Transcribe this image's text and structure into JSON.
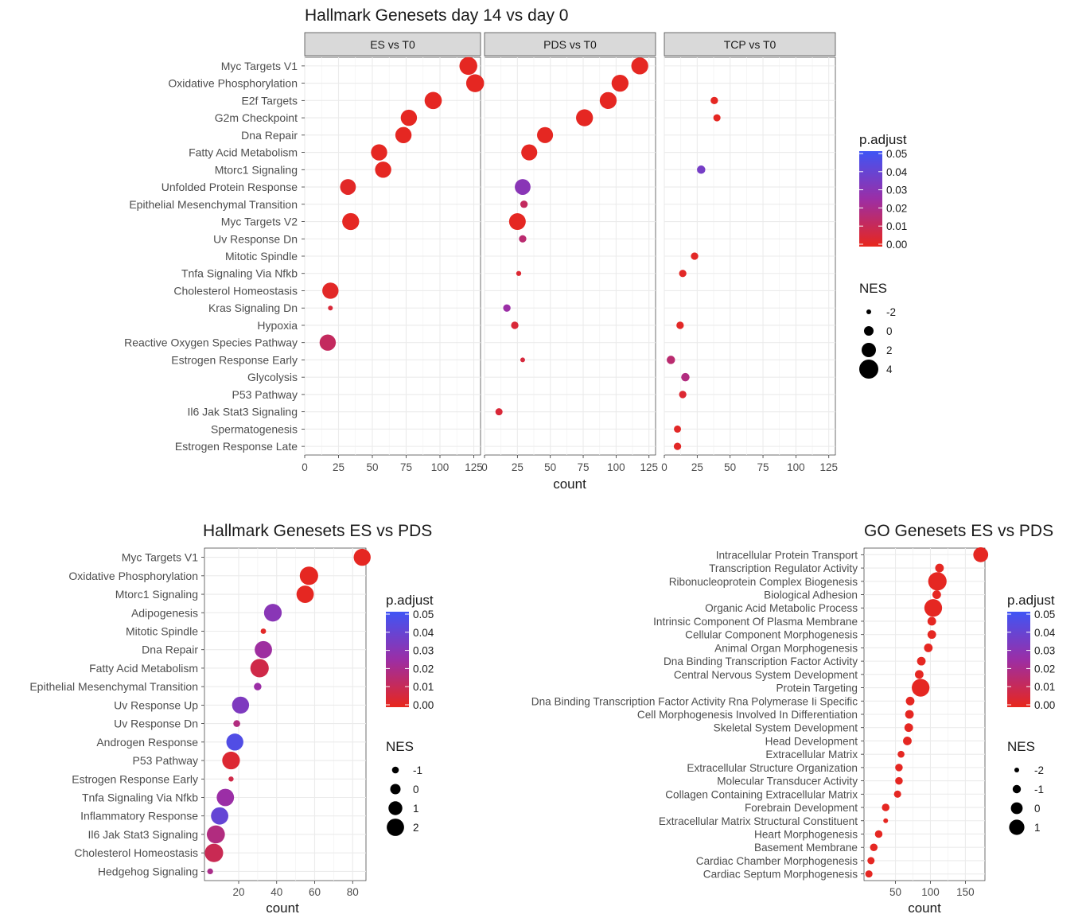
{
  "colors": {
    "low": "#e8271c",
    "mid": "#9b2ea6",
    "high": "#3f55f5",
    "panel_bg": "#ffffff",
    "grid": "#ebebeb",
    "strip_bg": "#d9d9d9"
  },
  "legend": {
    "padj_title": "p.adjust",
    "nes_title": "NES",
    "padj_labels": [
      "0.05",
      "0.04",
      "0.03",
      "0.02",
      "0.01",
      "0.00"
    ],
    "nes_labels_top": [
      "-2",
      "0",
      "2",
      "4"
    ],
    "nes_labels_bl": [
      "-1",
      "0",
      "1",
      "2"
    ],
    "nes_labels_br": [
      "-2",
      "-1",
      "0",
      "1"
    ]
  },
  "chart_data": [
    {
      "type": "scatter",
      "title": "Hallmark Genesets day 14 vs day 0",
      "xlabel": "count",
      "xlim": [
        0,
        130
      ],
      "xticks": [
        0,
        25,
        50,
        75,
        100,
        125
      ],
      "facets": [
        "ES vs T0",
        "PDS vs T0",
        "TCP vs T0"
      ],
      "categories": [
        "Myc Targets V1",
        "Oxidative Phosphorylation",
        "E2f Targets",
        "G2m Checkpoint",
        "Dna Repair",
        "Fatty Acid Metabolism",
        "Mtorc1 Signaling",
        "Unfolded Protein Response",
        "Epithelial Mesenchymal Transition",
        "Myc Targets V2",
        "Uv Response Dn",
        "Mitotic Spindle",
        "Tnfa Signaling Via Nfkb",
        "Cholesterol Homeostasis",
        "Kras Signaling Dn",
        "Hypoxia",
        "Reactive Oxygen Species Pathway",
        "Estrogen Response Early",
        "Glycolysis",
        "P53 Pathway",
        "Il6 Jak Stat3 Signaling",
        "Spermatogenesis",
        "Estrogen Response Late"
      ],
      "points": [
        {
          "facet": 0,
          "cat": 0,
          "x": 121,
          "padj": 0.001,
          "nes": 3.5
        },
        {
          "facet": 0,
          "cat": 1,
          "x": 126,
          "padj": 0.001,
          "nes": 3.5
        },
        {
          "facet": 0,
          "cat": 2,
          "x": 95,
          "padj": 0.001,
          "nes": 3.2
        },
        {
          "facet": 0,
          "cat": 3,
          "x": 77,
          "padj": 0.001,
          "nes": 2.8
        },
        {
          "facet": 0,
          "cat": 4,
          "x": 73,
          "padj": 0.001,
          "nes": 2.8
        },
        {
          "facet": 0,
          "cat": 5,
          "x": 55,
          "padj": 0.001,
          "nes": 2.8
        },
        {
          "facet": 0,
          "cat": 6,
          "x": 58,
          "padj": 0.001,
          "nes": 2.8
        },
        {
          "facet": 0,
          "cat": 7,
          "x": 32,
          "padj": 0.002,
          "nes": 2.6
        },
        {
          "facet": 0,
          "cat": 9,
          "x": 34,
          "padj": 0.001,
          "nes": 3.1
        },
        {
          "facet": 0,
          "cat": 13,
          "x": 19,
          "padj": 0.002,
          "nes": 2.8
        },
        {
          "facet": 0,
          "cat": 14,
          "x": 19,
          "padj": 0.005,
          "nes": -2.0
        },
        {
          "facet": 0,
          "cat": 16,
          "x": 17,
          "padj": 0.012,
          "nes": 2.8
        },
        {
          "facet": 1,
          "cat": 0,
          "x": 118,
          "padj": 0.001,
          "nes": 3.1
        },
        {
          "facet": 1,
          "cat": 1,
          "x": 103,
          "padj": 0.001,
          "nes": 3.1
        },
        {
          "facet": 1,
          "cat": 2,
          "x": 94,
          "padj": 0.001,
          "nes": 3.1
        },
        {
          "facet": 1,
          "cat": 3,
          "x": 76,
          "padj": 0.001,
          "nes": 3.1
        },
        {
          "facet": 1,
          "cat": 4,
          "x": 46,
          "padj": 0.001,
          "nes": 2.7
        },
        {
          "facet": 1,
          "cat": 5,
          "x": 34,
          "padj": 0.001,
          "nes": 2.7
        },
        {
          "facet": 1,
          "cat": 7,
          "x": 29,
          "padj": 0.03,
          "nes": 2.6
        },
        {
          "facet": 1,
          "cat": 8,
          "x": 30,
          "padj": 0.012,
          "nes": -0.9
        },
        {
          "facet": 1,
          "cat": 9,
          "x": 25,
          "padj": 0.001,
          "nes": 3.0
        },
        {
          "facet": 1,
          "cat": 10,
          "x": 29,
          "padj": 0.015,
          "nes": -0.9
        },
        {
          "facet": 1,
          "cat": 12,
          "x": 26,
          "padj": 0.004,
          "nes": -1.9
        },
        {
          "facet": 1,
          "cat": 14,
          "x": 17,
          "padj": 0.025,
          "nes": -0.9
        },
        {
          "facet": 1,
          "cat": 15,
          "x": 23,
          "padj": 0.005,
          "nes": -0.9
        },
        {
          "facet": 1,
          "cat": 17,
          "x": 29,
          "padj": 0.006,
          "nes": -2.0
        },
        {
          "facet": 1,
          "cat": 20,
          "x": 11,
          "padj": 0.005,
          "nes": -1.0
        },
        {
          "facet": 2,
          "cat": 2,
          "x": 38,
          "padj": 0.001,
          "nes": -0.9
        },
        {
          "facet": 2,
          "cat": 3,
          "x": 40,
          "padj": 0.001,
          "nes": -1.0
        },
        {
          "facet": 2,
          "cat": 6,
          "x": 28,
          "padj": 0.035,
          "nes": -0.5
        },
        {
          "facet": 2,
          "cat": 11,
          "x": 23,
          "padj": 0.002,
          "nes": -0.9
        },
        {
          "facet": 2,
          "cat": 12,
          "x": 14,
          "padj": 0.002,
          "nes": -0.9
        },
        {
          "facet": 2,
          "cat": 15,
          "x": 12,
          "padj": 0.002,
          "nes": -0.9
        },
        {
          "facet": 2,
          "cat": 17,
          "x": 5,
          "padj": 0.015,
          "nes": -0.5
        },
        {
          "facet": 2,
          "cat": 18,
          "x": 16,
          "padj": 0.018,
          "nes": -0.5
        },
        {
          "facet": 2,
          "cat": 19,
          "x": 14,
          "padj": 0.004,
          "nes": -0.9
        },
        {
          "facet": 2,
          "cat": 21,
          "x": 10,
          "padj": 0.002,
          "nes": -1.0
        },
        {
          "facet": 2,
          "cat": 22,
          "x": 10,
          "padj": 0.002,
          "nes": -0.9
        }
      ]
    },
    {
      "type": "scatter",
      "title": "Hallmark Genesets ES vs PDS",
      "xlabel": "count",
      "xlim": [
        2,
        87
      ],
      "xticks": [
        20,
        40,
        60,
        80
      ],
      "categories": [
        "Myc Targets V1",
        "Oxidative Phosphorylation",
        "Mtorc1 Signaling",
        "Adipogenesis",
        "Mitotic Spindle",
        "Dna Repair",
        "Fatty Acid Metabolism",
        "Epithelial Mesenchymal Transition",
        "Uv Response Up",
        "Uv Response Dn",
        "Androgen Response",
        "P53 Pathway",
        "Estrogen Response Early",
        "Tnfa Signaling Via Nfkb",
        "Inflammatory Response",
        "Il6 Jak Stat3 Signaling",
        "Cholesterol Homeostasis",
        "Hedgehog Signaling"
      ],
      "points": [
        {
          "cat": 0,
          "x": 85,
          "padj": 0.001,
          "nes": 1.9
        },
        {
          "cat": 1,
          "x": 57,
          "padj": 0.001,
          "nes": 2.3
        },
        {
          "cat": 2,
          "x": 55,
          "padj": 0.001,
          "nes": 2.0
        },
        {
          "cat": 3,
          "x": 38,
          "padj": 0.03,
          "nes": 2.1
        },
        {
          "cat": 4,
          "x": 33,
          "padj": 0.002,
          "nes": -1.4
        },
        {
          "cat": 5,
          "x": 33,
          "padj": 0.024,
          "nes": 2.0
        },
        {
          "cat": 6,
          "x": 31,
          "padj": 0.008,
          "nes": 2.3
        },
        {
          "cat": 7,
          "x": 30,
          "padj": 0.025,
          "nes": -0.8
        },
        {
          "cat": 8,
          "x": 21,
          "padj": 0.033,
          "nes": 1.9
        },
        {
          "cat": 9,
          "x": 19,
          "padj": 0.018,
          "nes": -1.0
        },
        {
          "cat": 10,
          "x": 18,
          "padj": 0.045,
          "nes": 1.9
        },
        {
          "cat": 11,
          "x": 16,
          "padj": 0.004,
          "nes": 2.1
        },
        {
          "cat": 12,
          "x": 16,
          "padj": 0.008,
          "nes": -1.5
        },
        {
          "cat": 13,
          "x": 13,
          "padj": 0.025,
          "nes": 2.0
        },
        {
          "cat": 14,
          "x": 10,
          "padj": 0.04,
          "nes": 2.0
        },
        {
          "cat": 15,
          "x": 8,
          "padj": 0.018,
          "nes": 2.2
        },
        {
          "cat": 16,
          "x": 7,
          "padj": 0.01,
          "nes": 2.3
        },
        {
          "cat": 17,
          "x": 5,
          "padj": 0.02,
          "nes": -1.3
        }
      ]
    },
    {
      "type": "scatter",
      "title": "GO Genesets ES vs PDS",
      "xlabel": "count",
      "xlim": [
        5,
        178
      ],
      "xticks": [
        50,
        100,
        150
      ],
      "categories": [
        "Intracellular Protein Transport",
        "Transcription Regulator Activity",
        "Ribonucleoprotein Complex Biogenesis",
        "Biological Adhesion",
        "Organic Acid Metabolic Process",
        "Intrinsic Component Of Plasma Membrane",
        "Cellular Component Morphogenesis",
        "Animal Organ Morphogenesis",
        "Dna Binding Transcription Factor Activity",
        "Central Nervous System Development",
        "Protein Targeting",
        "Dna Binding Transcription Factor Activity Rna Polymerase Ii Specific",
        "Cell Morphogenesis Involved In Differentiation",
        "Skeletal System Development",
        "Head Development",
        "Extracellular Matrix",
        "Extracellular Structure Organization",
        "Molecular Transducer Activity",
        "Collagen Containing Extracellular Matrix",
        "Forebrain Development",
        "Extracellular Matrix Structural Constituent",
        "Heart Morphogenesis",
        "Basement Membrane",
        "Cardiac Chamber Morphogenesis",
        "Cardiac Septum Morphogenesis"
      ],
      "points": [
        {
          "cat": 0,
          "x": 172,
          "padj": 0.001,
          "nes": 0.9
        },
        {
          "cat": 1,
          "x": 113,
          "padj": 0.001,
          "nes": -0.9
        },
        {
          "cat": 2,
          "x": 110,
          "padj": 0.001,
          "nes": 1.9
        },
        {
          "cat": 3,
          "x": 109,
          "padj": 0.001,
          "nes": -0.9
        },
        {
          "cat": 4,
          "x": 104,
          "padj": 0.001,
          "nes": 1.7
        },
        {
          "cat": 5,
          "x": 102,
          "padj": 0.001,
          "nes": -0.9
        },
        {
          "cat": 6,
          "x": 102,
          "padj": 0.001,
          "nes": -0.9
        },
        {
          "cat": 7,
          "x": 97,
          "padj": 0.001,
          "nes": -0.9
        },
        {
          "cat": 8,
          "x": 87,
          "padj": 0.001,
          "nes": -0.9
        },
        {
          "cat": 9,
          "x": 84,
          "padj": 0.001,
          "nes": -0.9
        },
        {
          "cat": 10,
          "x": 86,
          "padj": 0.001,
          "nes": 1.7
        },
        {
          "cat": 11,
          "x": 71,
          "padj": 0.001,
          "nes": -0.9
        },
        {
          "cat": 12,
          "x": 70,
          "padj": 0.001,
          "nes": -0.9
        },
        {
          "cat": 13,
          "x": 69,
          "padj": 0.001,
          "nes": -0.9
        },
        {
          "cat": 14,
          "x": 67,
          "padj": 0.001,
          "nes": -0.9
        },
        {
          "cat": 15,
          "x": 58,
          "padj": 0.001,
          "nes": -1.4
        },
        {
          "cat": 16,
          "x": 55,
          "padj": 0.001,
          "nes": -1.2
        },
        {
          "cat": 17,
          "x": 55,
          "padj": 0.001,
          "nes": -1.2
        },
        {
          "cat": 18,
          "x": 53,
          "padj": 0.001,
          "nes": -1.3
        },
        {
          "cat": 19,
          "x": 36,
          "padj": 0.001,
          "nes": -1.2
        },
        {
          "cat": 20,
          "x": 36,
          "padj": 0.001,
          "nes": -2.0
        },
        {
          "cat": 21,
          "x": 26,
          "padj": 0.001,
          "nes": -1.2
        },
        {
          "cat": 22,
          "x": 19,
          "padj": 0.001,
          "nes": -1.2
        },
        {
          "cat": 23,
          "x": 15,
          "padj": 0.001,
          "nes": -1.3
        },
        {
          "cat": 24,
          "x": 12,
          "padj": 0.001,
          "nes": -1.3
        }
      ]
    }
  ]
}
